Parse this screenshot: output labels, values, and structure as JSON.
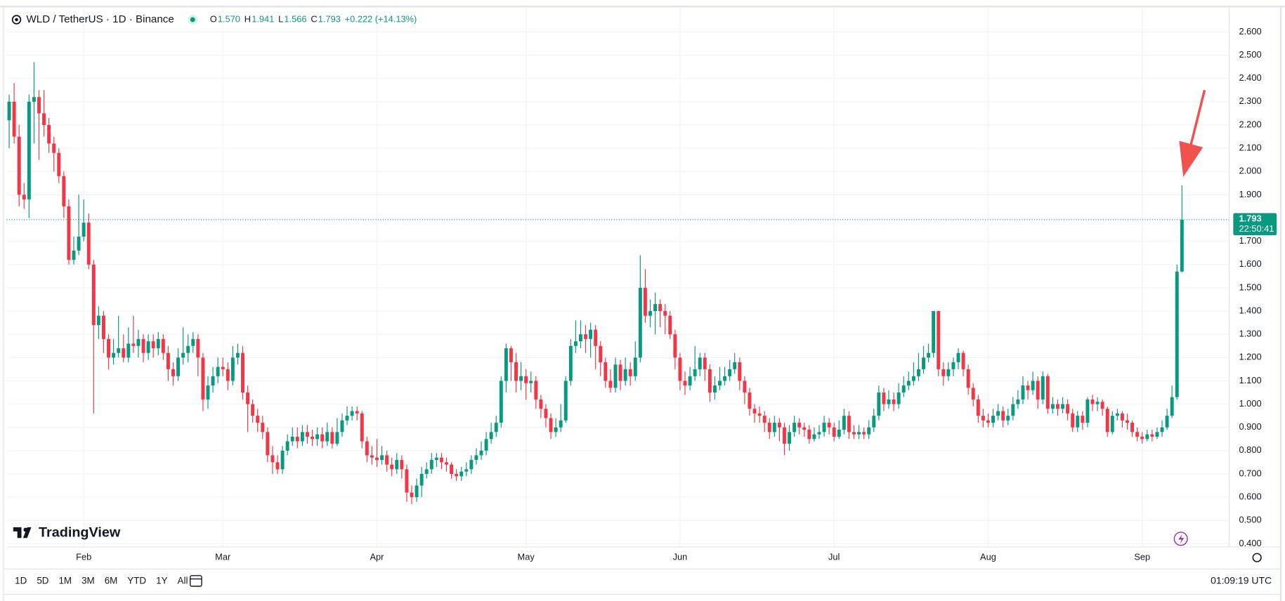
{
  "chart_data": {
    "type": "candlestick",
    "title": "WLD / TetherUS · 1D · Binance",
    "ohlc_legend": [
      {
        "label": "O",
        "value": "1.570"
      },
      {
        "label": "H",
        "value": "1.941"
      },
      {
        "label": "L",
        "value": "1.566"
      },
      {
        "label": "C",
        "value": "1.793"
      }
    ],
    "change": "+0.222 (+14.13%)",
    "up_color": "#089981",
    "down_color": "#f23645",
    "ohlc": [
      [
        2.22,
        2.33,
        2.1,
        2.3
      ],
      [
        2.3,
        2.38,
        2.12,
        2.15
      ],
      [
        2.15,
        2.2,
        1.85,
        1.9
      ],
      [
        1.9,
        1.95,
        1.84,
        1.88
      ],
      [
        1.88,
        2.33,
        1.8,
        2.3
      ],
      [
        2.3,
        2.47,
        2.12,
        2.32
      ],
      [
        2.32,
        2.35,
        2.05,
        2.25
      ],
      [
        2.25,
        2.35,
        2.15,
        2.2
      ],
      [
        2.2,
        2.23,
        2.08,
        2.12
      ],
      [
        2.12,
        2.15,
        2.0,
        2.08
      ],
      [
        2.08,
        2.1,
        1.95,
        1.98
      ],
      [
        1.98,
        2.0,
        1.8,
        1.85
      ],
      [
        1.85,
        1.88,
        1.6,
        1.62
      ],
      [
        1.62,
        1.72,
        1.6,
        1.66
      ],
      [
        1.66,
        1.9,
        1.64,
        1.72
      ],
      [
        1.72,
        1.88,
        1.7,
        1.78
      ],
      [
        1.78,
        1.82,
        1.58,
        1.6
      ],
      [
        1.6,
        1.62,
        0.96,
        1.34
      ],
      [
        1.34,
        1.42,
        1.28,
        1.38
      ],
      [
        1.38,
        1.4,
        1.22,
        1.28
      ],
      [
        1.28,
        1.3,
        1.15,
        1.2
      ],
      [
        1.2,
        1.28,
        1.17,
        1.22
      ],
      [
        1.22,
        1.38,
        1.2,
        1.24
      ],
      [
        1.24,
        1.3,
        1.18,
        1.2
      ],
      [
        1.2,
        1.33,
        1.18,
        1.26
      ],
      [
        1.26,
        1.38,
        1.22,
        1.25
      ],
      [
        1.25,
        1.32,
        1.2,
        1.28
      ],
      [
        1.28,
        1.3,
        1.18,
        1.22
      ],
      [
        1.22,
        1.3,
        1.19,
        1.27
      ],
      [
        1.27,
        1.3,
        1.2,
        1.24
      ],
      [
        1.24,
        1.31,
        1.21,
        1.28
      ],
      [
        1.28,
        1.3,
        1.19,
        1.22
      ],
      [
        1.22,
        1.25,
        1.1,
        1.15
      ],
      [
        1.15,
        1.18,
        1.08,
        1.12
      ],
      [
        1.12,
        1.24,
        1.1,
        1.2
      ],
      [
        1.2,
        1.33,
        1.17,
        1.22
      ],
      [
        1.22,
        1.3,
        1.18,
        1.25
      ],
      [
        1.25,
        1.31,
        1.22,
        1.28
      ],
      [
        1.28,
        1.3,
        1.12,
        1.2
      ],
      [
        1.2,
        1.22,
        0.97,
        1.02
      ],
      [
        1.02,
        1.12,
        0.98,
        1.08
      ],
      [
        1.08,
        1.16,
        1.05,
        1.12
      ],
      [
        1.12,
        1.2,
        1.09,
        1.16
      ],
      [
        1.16,
        1.2,
        1.12,
        1.15
      ],
      [
        1.15,
        1.18,
        1.06,
        1.1
      ],
      [
        1.1,
        1.25,
        1.08,
        1.2
      ],
      [
        1.2,
        1.26,
        1.17,
        1.22
      ],
      [
        1.22,
        1.25,
        1.02,
        1.05
      ],
      [
        1.05,
        1.08,
        0.88,
        1.0
      ],
      [
        1.0,
        1.02,
        0.92,
        0.95
      ],
      [
        0.95,
        0.98,
        0.88,
        0.92
      ],
      [
        0.92,
        0.95,
        0.85,
        0.88
      ],
      [
        0.88,
        0.9,
        0.75,
        0.78
      ],
      [
        0.78,
        0.82,
        0.7,
        0.75
      ],
      [
        0.75,
        0.78,
        0.7,
        0.72
      ],
      [
        0.72,
        0.82,
        0.7,
        0.8
      ],
      [
        0.8,
        0.87,
        0.78,
        0.84
      ],
      [
        0.84,
        0.9,
        0.82,
        0.86
      ],
      [
        0.86,
        0.9,
        0.81,
        0.84
      ],
      [
        0.84,
        0.91,
        0.82,
        0.88
      ],
      [
        0.88,
        0.91,
        0.83,
        0.86
      ],
      [
        0.86,
        0.89,
        0.82,
        0.85
      ],
      [
        0.85,
        0.9,
        0.82,
        0.87
      ],
      [
        0.87,
        0.9,
        0.81,
        0.84
      ],
      [
        0.84,
        0.92,
        0.82,
        0.88
      ],
      [
        0.88,
        0.9,
        0.81,
        0.83
      ],
      [
        0.83,
        0.94,
        0.82,
        0.88
      ],
      [
        0.88,
        0.96,
        0.86,
        0.93
      ],
      [
        0.93,
        0.99,
        0.91,
        0.95
      ],
      [
        0.95,
        0.99,
        0.93,
        0.97
      ],
      [
        0.97,
        0.99,
        0.93,
        0.96
      ],
      [
        0.96,
        0.97,
        0.81,
        0.84
      ],
      [
        0.84,
        0.86,
        0.75,
        0.78
      ],
      [
        0.78,
        0.82,
        0.74,
        0.77
      ],
      [
        0.77,
        0.85,
        0.73,
        0.76
      ],
      [
        0.76,
        0.82,
        0.74,
        0.78
      ],
      [
        0.78,
        0.8,
        0.71,
        0.74
      ],
      [
        0.74,
        0.77,
        0.69,
        0.72
      ],
      [
        0.72,
        0.79,
        0.7,
        0.76
      ],
      [
        0.76,
        0.78,
        0.68,
        0.72
      ],
      [
        0.72,
        0.74,
        0.58,
        0.62
      ],
      [
        0.62,
        0.65,
        0.57,
        0.6
      ],
      [
        0.6,
        0.68,
        0.58,
        0.65
      ],
      [
        0.65,
        0.73,
        0.6,
        0.7
      ],
      [
        0.7,
        0.75,
        0.68,
        0.72
      ],
      [
        0.72,
        0.79,
        0.7,
        0.76
      ],
      [
        0.76,
        0.79,
        0.73,
        0.77
      ],
      [
        0.77,
        0.79,
        0.72,
        0.75
      ],
      [
        0.75,
        0.77,
        0.71,
        0.74
      ],
      [
        0.74,
        0.75,
        0.68,
        0.7
      ],
      [
        0.7,
        0.72,
        0.67,
        0.69
      ],
      [
        0.69,
        0.73,
        0.67,
        0.71
      ],
      [
        0.71,
        0.75,
        0.69,
        0.72
      ],
      [
        0.72,
        0.78,
        0.7,
        0.76
      ],
      [
        0.76,
        0.81,
        0.74,
        0.78
      ],
      [
        0.78,
        0.84,
        0.76,
        0.8
      ],
      [
        0.8,
        0.88,
        0.78,
        0.85
      ],
      [
        0.85,
        0.92,
        0.83,
        0.88
      ],
      [
        0.88,
        0.95,
        0.86,
        0.92
      ],
      [
        0.92,
        1.12,
        0.9,
        1.1
      ],
      [
        1.1,
        1.26,
        1.05,
        1.24
      ],
      [
        1.24,
        1.25,
        1.1,
        1.18
      ],
      [
        1.18,
        1.22,
        1.05,
        1.1
      ],
      [
        1.1,
        1.18,
        1.06,
        1.12
      ],
      [
        1.12,
        1.15,
        1.02,
        1.09
      ],
      [
        1.09,
        1.14,
        1.05,
        1.1
      ],
      [
        1.1,
        1.12,
        0.98,
        1.02
      ],
      [
        1.02,
        1.04,
        0.94,
        0.98
      ],
      [
        0.98,
        1.0,
        0.9,
        0.94
      ],
      [
        0.94,
        0.96,
        0.85,
        0.88
      ],
      [
        0.88,
        0.94,
        0.86,
        0.9
      ],
      [
        0.9,
        1.0,
        0.88,
        0.93
      ],
      [
        0.93,
        1.12,
        0.92,
        1.1
      ],
      [
        1.1,
        1.28,
        1.08,
        1.25
      ],
      [
        1.25,
        1.36,
        1.22,
        1.27
      ],
      [
        1.27,
        1.36,
        1.24,
        1.3
      ],
      [
        1.3,
        1.34,
        1.22,
        1.28
      ],
      [
        1.28,
        1.35,
        1.2,
        1.32
      ],
      [
        1.32,
        1.34,
        1.15,
        1.25
      ],
      [
        1.25,
        1.27,
        1.12,
        1.18
      ],
      [
        1.18,
        1.2,
        1.07,
        1.1
      ],
      [
        1.1,
        1.15,
        1.05,
        1.07
      ],
      [
        1.07,
        1.2,
        1.05,
        1.17
      ],
      [
        1.17,
        1.19,
        1.06,
        1.1
      ],
      [
        1.1,
        1.2,
        1.08,
        1.15
      ],
      [
        1.15,
        1.18,
        1.08,
        1.12
      ],
      [
        1.12,
        1.27,
        1.1,
        1.2
      ],
      [
        1.2,
        1.64,
        1.18,
        1.5
      ],
      [
        1.5,
        1.58,
        1.35,
        1.38
      ],
      [
        1.38,
        1.45,
        1.33,
        1.4
      ],
      [
        1.4,
        1.48,
        1.3,
        1.43
      ],
      [
        1.43,
        1.45,
        1.33,
        1.4
      ],
      [
        1.4,
        1.43,
        1.3,
        1.38
      ],
      [
        1.38,
        1.4,
        1.28,
        1.3
      ],
      [
        1.3,
        1.32,
        1.15,
        1.2
      ],
      [
        1.2,
        1.22,
        1.06,
        1.1
      ],
      [
        1.1,
        1.14,
        1.04,
        1.08
      ],
      [
        1.08,
        1.16,
        1.06,
        1.12
      ],
      [
        1.12,
        1.25,
        1.1,
        1.15
      ],
      [
        1.15,
        1.22,
        1.12,
        1.2
      ],
      [
        1.2,
        1.22,
        1.1,
        1.15
      ],
      [
        1.15,
        1.17,
        1.01,
        1.05
      ],
      [
        1.05,
        1.12,
        1.02,
        1.08
      ],
      [
        1.08,
        1.16,
        1.06,
        1.1
      ],
      [
        1.1,
        1.16,
        1.08,
        1.12
      ],
      [
        1.12,
        1.19,
        1.1,
        1.15
      ],
      [
        1.15,
        1.22,
        1.13,
        1.18
      ],
      [
        1.18,
        1.2,
        1.06,
        1.1
      ],
      [
        1.1,
        1.12,
        1.0,
        1.05
      ],
      [
        1.05,
        1.07,
        0.95,
        0.98
      ],
      [
        0.98,
        1.0,
        0.92,
        0.96
      ],
      [
        0.96,
        0.99,
        0.92,
        0.95
      ],
      [
        0.95,
        0.97,
        0.88,
        0.92
      ],
      [
        0.92,
        0.94,
        0.85,
        0.88
      ],
      [
        0.88,
        0.95,
        0.86,
        0.92
      ],
      [
        0.92,
        0.94,
        0.84,
        0.9
      ],
      [
        0.9,
        0.92,
        0.78,
        0.83
      ],
      [
        0.83,
        0.91,
        0.8,
        0.88
      ],
      [
        0.88,
        0.95,
        0.86,
        0.92
      ],
      [
        0.92,
        0.94,
        0.87,
        0.9
      ],
      [
        0.9,
        0.92,
        0.86,
        0.89
      ],
      [
        0.89,
        0.91,
        0.83,
        0.85
      ],
      [
        0.85,
        0.9,
        0.84,
        0.87
      ],
      [
        0.87,
        0.91,
        0.85,
        0.88
      ],
      [
        0.88,
        0.95,
        0.86,
        0.92
      ],
      [
        0.92,
        0.94,
        0.87,
        0.9
      ],
      [
        0.9,
        0.92,
        0.84,
        0.86
      ],
      [
        0.86,
        0.93,
        0.85,
        0.89
      ],
      [
        0.89,
        0.98,
        0.87,
        0.95
      ],
      [
        0.95,
        0.97,
        0.85,
        0.88
      ],
      [
        0.88,
        0.91,
        0.85,
        0.87
      ],
      [
        0.87,
        0.91,
        0.85,
        0.88
      ],
      [
        0.88,
        0.9,
        0.85,
        0.87
      ],
      [
        0.87,
        0.93,
        0.85,
        0.9
      ],
      [
        0.9,
        0.98,
        0.88,
        0.95
      ],
      [
        0.95,
        1.08,
        0.93,
        1.05
      ],
      [
        1.05,
        1.07,
        0.97,
        1.0
      ],
      [
        1.0,
        1.06,
        0.98,
        1.02
      ],
      [
        1.02,
        1.05,
        0.97,
        1.0
      ],
      [
        1.0,
        1.09,
        0.98,
        1.05
      ],
      [
        1.05,
        1.12,
        1.03,
        1.08
      ],
      [
        1.08,
        1.14,
        1.06,
        1.1
      ],
      [
        1.1,
        1.18,
        1.08,
        1.12
      ],
      [
        1.12,
        1.22,
        1.1,
        1.15
      ],
      [
        1.15,
        1.25,
        1.13,
        1.2
      ],
      [
        1.2,
        1.26,
        1.18,
        1.22
      ],
      [
        1.22,
        1.4,
        1.2,
        1.4
      ],
      [
        1.4,
        1.4,
        1.12,
        1.15
      ],
      [
        1.15,
        1.18,
        1.08,
        1.12
      ],
      [
        1.12,
        1.18,
        1.1,
        1.15
      ],
      [
        1.15,
        1.2,
        1.12,
        1.18
      ],
      [
        1.18,
        1.24,
        1.15,
        1.22
      ],
      [
        1.22,
        1.23,
        1.12,
        1.15
      ],
      [
        1.15,
        1.17,
        1.04,
        1.07
      ],
      [
        1.07,
        1.09,
        0.99,
        1.02
      ],
      [
        1.02,
        1.04,
        0.92,
        0.95
      ],
      [
        0.95,
        0.98,
        0.9,
        0.93
      ],
      [
        0.93,
        0.96,
        0.9,
        0.92
      ],
      [
        0.92,
        0.98,
        0.9,
        0.95
      ],
      [
        0.95,
        1.0,
        0.93,
        0.97
      ],
      [
        0.97,
        0.99,
        0.9,
        0.93
      ],
      [
        0.93,
        0.98,
        0.91,
        0.95
      ],
      [
        0.95,
        1.03,
        0.93,
        1.0
      ],
      [
        1.0,
        1.06,
        0.98,
        1.02
      ],
      [
        1.02,
        1.12,
        1.0,
        1.08
      ],
      [
        1.08,
        1.1,
        1.02,
        1.06
      ],
      [
        1.06,
        1.14,
        1.04,
        1.1
      ],
      [
        1.1,
        1.12,
        0.98,
        1.02
      ],
      [
        1.02,
        1.14,
        1.0,
        1.12
      ],
      [
        1.12,
        1.13,
        0.96,
        0.98
      ],
      [
        0.98,
        1.03,
        0.96,
        1.0
      ],
      [
        1.0,
        1.02,
        0.95,
        0.98
      ],
      [
        0.98,
        1.03,
        0.96,
        1.0
      ],
      [
        1.0,
        1.02,
        0.93,
        0.96
      ],
      [
        0.96,
        0.98,
        0.88,
        0.9
      ],
      [
        0.9,
        0.97,
        0.88,
        0.95
      ],
      [
        0.95,
        0.97,
        0.89,
        0.92
      ],
      [
        0.92,
        1.03,
        0.9,
        1.02
      ],
      [
        1.02,
        1.04,
        0.97,
        1.0
      ],
      [
        1.0,
        1.03,
        0.97,
        1.01
      ],
      [
        1.01,
        1.02,
        0.95,
        0.98
      ],
      [
        0.98,
        0.99,
        0.86,
        0.88
      ],
      [
        0.88,
        0.97,
        0.87,
        0.95
      ],
      [
        0.95,
        0.98,
        0.93,
        0.96
      ],
      [
        0.96,
        0.97,
        0.9,
        0.93
      ],
      [
        0.93,
        0.96,
        0.89,
        0.92
      ],
      [
        0.92,
        0.93,
        0.86,
        0.88
      ],
      [
        0.88,
        0.9,
        0.84,
        0.86
      ],
      [
        0.86,
        0.88,
        0.83,
        0.85
      ],
      [
        0.85,
        0.89,
        0.84,
        0.87
      ],
      [
        0.87,
        0.89,
        0.84,
        0.86
      ],
      [
        0.86,
        0.9,
        0.85,
        0.88
      ],
      [
        0.88,
        0.93,
        0.86,
        0.9
      ],
      [
        0.9,
        0.98,
        0.89,
        0.95
      ],
      [
        0.95,
        1.08,
        0.94,
        1.03
      ],
      [
        1.03,
        1.6,
        1.02,
        1.57
      ],
      [
        1.57,
        1.941,
        1.566,
        1.793
      ]
    ],
    "xlim": [
      -0.5,
      245.5
    ],
    "xticks": [
      {
        "value": 15,
        "label": "Feb"
      },
      {
        "value": 43,
        "label": "Mar"
      },
      {
        "value": 74,
        "label": "Apr"
      },
      {
        "value": 104,
        "label": "May"
      },
      {
        "value": 135,
        "label": "Jun"
      },
      {
        "value": 166,
        "label": "Jul"
      },
      {
        "value": 197,
        "label": "Aug"
      },
      {
        "value": 228,
        "label": "Sep"
      }
    ],
    "ylim": [
      0.386,
      2.702
    ],
    "yticks": [
      {
        "value": 0.4,
        "label": "0.400"
      },
      {
        "value": 0.5,
        "label": "0.500"
      },
      {
        "value": 0.6,
        "label": "0.600"
      },
      {
        "value": 0.7,
        "label": "0.700"
      },
      {
        "value": 0.8,
        "label": "0.800"
      },
      {
        "value": 0.9,
        "label": "0.900"
      },
      {
        "value": 1.0,
        "label": "1.000"
      },
      {
        "value": 1.1,
        "label": "1.100"
      },
      {
        "value": 1.2,
        "label": "1.200"
      },
      {
        "value": 1.3,
        "label": "1.300"
      },
      {
        "value": 1.4,
        "label": "1.400"
      },
      {
        "value": 1.5,
        "label": "1.500"
      },
      {
        "value": 1.6,
        "label": "1.600"
      },
      {
        "value": 1.7,
        "label": "1.700"
      },
      {
        "value": 1.8,
        "label": "1.800"
      },
      {
        "value": 1.9,
        "label": "1.900"
      },
      {
        "value": 2.0,
        "label": "2.000"
      },
      {
        "value": 2.1,
        "label": "2.100"
      },
      {
        "value": 2.2,
        "label": "2.200"
      },
      {
        "value": 2.3,
        "label": "2.300"
      },
      {
        "value": 2.4,
        "label": "2.400"
      },
      {
        "value": 2.5,
        "label": "2.500"
      },
      {
        "value": 2.6,
        "label": "2.600"
      }
    ],
    "grid": true,
    "last_price_label": "1.793",
    "countdown": "22:50:41"
  },
  "ui": {
    "logo": "TradingView",
    "ranges": [
      "1D",
      "5D",
      "1M",
      "3M",
      "6M",
      "YTD",
      "1Y",
      "All"
    ],
    "clock": "01:09:19 UTC"
  }
}
